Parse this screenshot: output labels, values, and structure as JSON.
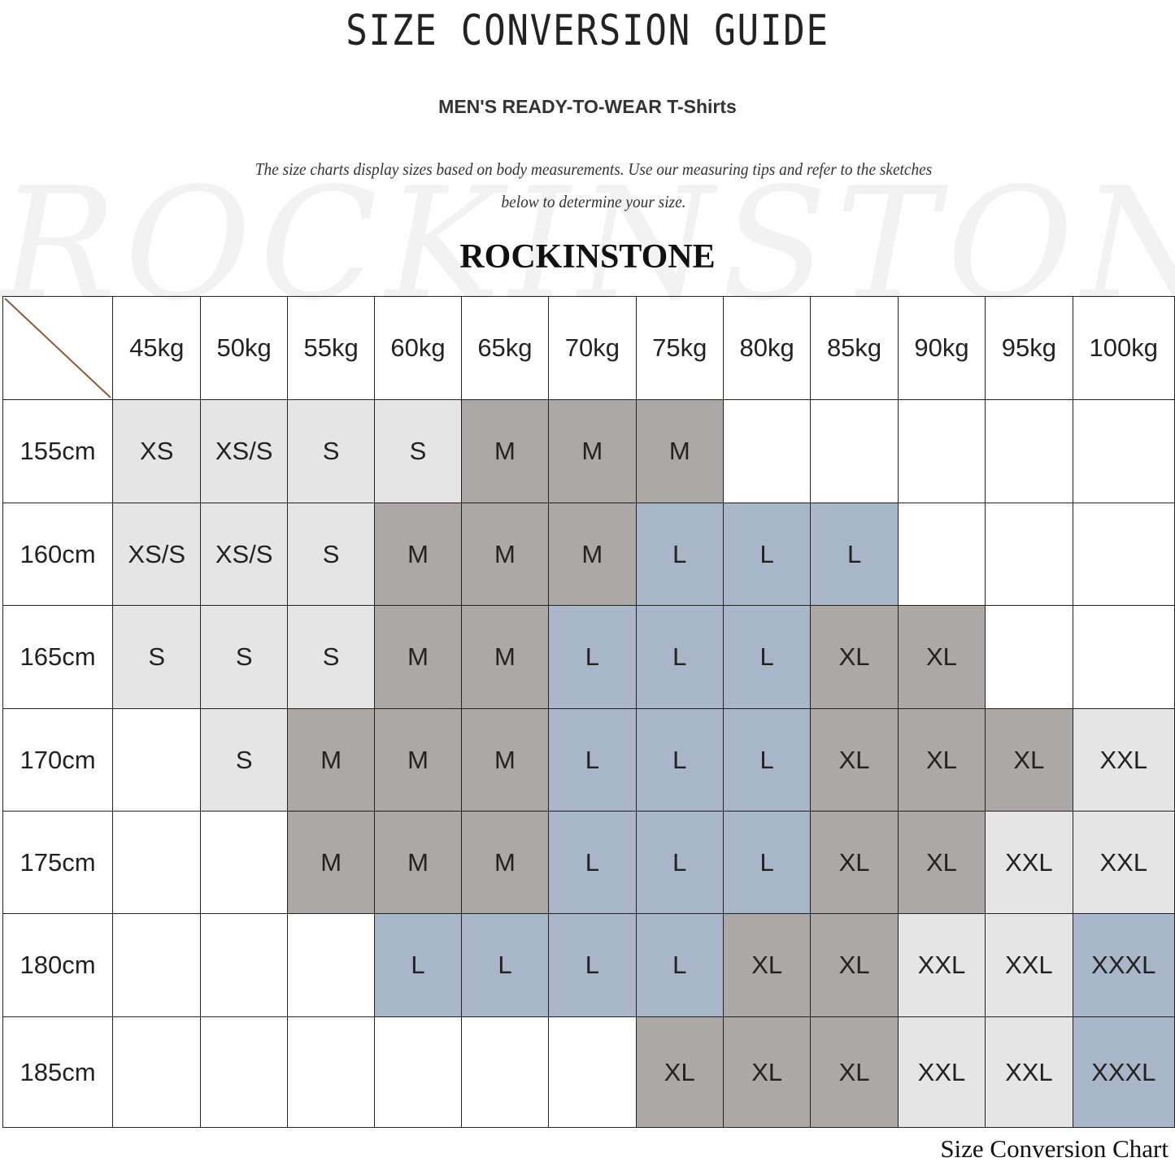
{
  "header": {
    "title": "SIZE CONVERSION GUIDE",
    "subtitle": "MEN'S READY-TO-WEAR T-Shirts",
    "description_line1": "The size charts display sizes based on body measurements. Use our measuring tips and refer to the sketches",
    "description_line2": "below to determine your size.",
    "brand": "ROCKINSTONE",
    "watermark": "ROCKINSTONE"
  },
  "colors": {
    "light": "#e5e5e5",
    "dark": "#aca8a7",
    "blue": "#a9b5c8",
    "diagonal": "#8b5a3c"
  },
  "table": {
    "weights": [
      "45kg",
      "50kg",
      "55kg",
      "60kg",
      "65kg",
      "70kg",
      "75kg",
      "80kg",
      "85kg",
      "90kg",
      "95kg",
      "100kg"
    ],
    "rows": [
      {
        "height": "155cm",
        "sizes": [
          "XS",
          "XS/S",
          "S",
          "S",
          "M",
          "M",
          "M",
          "",
          "",
          "",
          "",
          ""
        ]
      },
      {
        "height": "160cm",
        "sizes": [
          "XS/S",
          "XS/S",
          "S",
          "M",
          "M",
          "M",
          "L",
          "L",
          "L",
          "",
          "",
          ""
        ]
      },
      {
        "height": "165cm",
        "sizes": [
          "S",
          "S",
          "S",
          "M",
          "M",
          "L",
          "L",
          "L",
          "XL",
          "XL",
          "",
          ""
        ]
      },
      {
        "height": "170cm",
        "sizes": [
          "",
          "S",
          "M",
          "M",
          "M",
          "L",
          "L",
          "L",
          "XL",
          "XL",
          "XL",
          "XXL"
        ]
      },
      {
        "height": "175cm",
        "sizes": [
          "",
          "",
          "M",
          "M",
          "M",
          "L",
          "L",
          "L",
          "XL",
          "XL",
          "XXL",
          "XXL"
        ]
      },
      {
        "height": "180cm",
        "sizes": [
          "",
          "",
          "",
          "L",
          "L",
          "L",
          "L",
          "XL",
          "XL",
          "XXL",
          "XXL",
          "XXXL"
        ]
      },
      {
        "height": "185cm",
        "sizes": [
          "",
          "",
          "",
          "",
          "",
          "",
          "XL",
          "XL",
          "XL",
          "XXL",
          "XXL",
          "XXXL"
        ]
      }
    ]
  },
  "footer": {
    "caption": "Size Conversion Chart"
  }
}
